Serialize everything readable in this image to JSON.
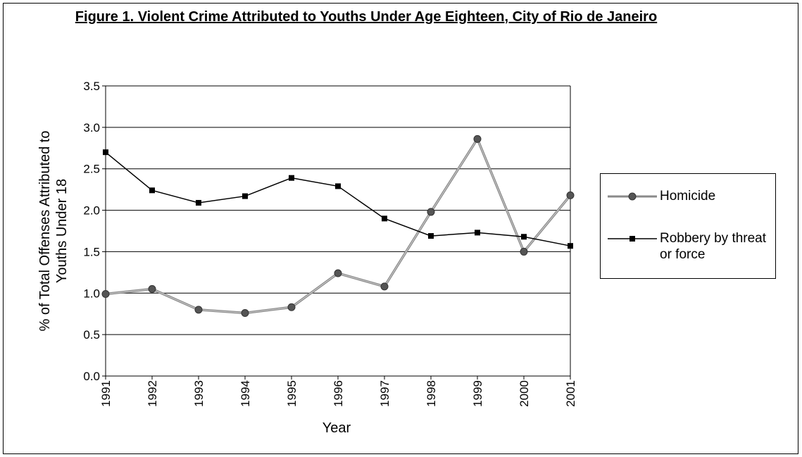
{
  "chart_data": {
    "type": "line",
    "title": "Figure 1. Violent Crime Attributed to Youths Under Age Eighteen, City of Rio de Janeiro",
    "xlabel": "Year",
    "ylabel": "% of Total Offenses Attributed to Youths Under 18",
    "categories": [
      "1991",
      "1992",
      "1993",
      "1994",
      "1995",
      "1996",
      "1997",
      "1998",
      "1999",
      "2000",
      "2001"
    ],
    "ylim": [
      0,
      3.5
    ],
    "yticks": [
      "0.0",
      "0.5",
      "1.0",
      "1.5",
      "2.0",
      "2.5",
      "3.0",
      "3.5"
    ],
    "grid": "horizontal",
    "legend_position": "right",
    "series": [
      {
        "name": "Homicide",
        "values": [
          0.99,
          1.05,
          0.8,
          0.76,
          0.83,
          1.24,
          1.08,
          1.98,
          2.86,
          1.5,
          2.18
        ],
        "color": "#8a8a8a",
        "marker": "circle"
      },
      {
        "name": "Robbery by threat or force",
        "values": [
          2.7,
          2.24,
          2.09,
          2.17,
          2.39,
          2.29,
          1.9,
          1.69,
          1.73,
          1.68,
          1.57
        ],
        "color": "#000000",
        "marker": "square"
      }
    ]
  }
}
